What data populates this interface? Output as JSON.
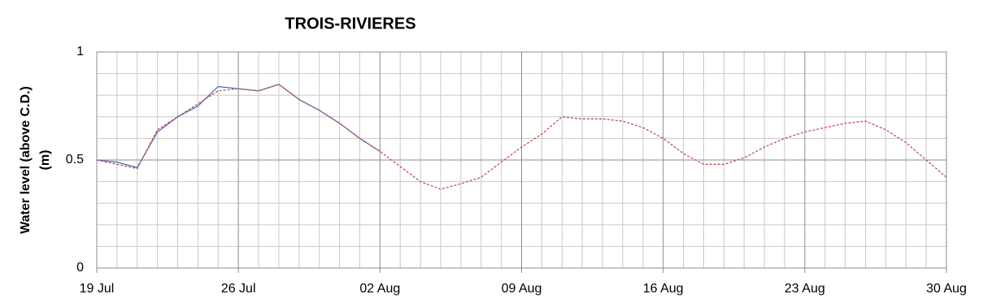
{
  "chart_data": {
    "type": "line",
    "title": "TROIS-RIVIERES",
    "ylabel": [
      "Water level (above C.D.)",
      "(m)"
    ],
    "x": [
      0,
      1,
      2,
      3,
      4,
      5,
      6,
      7,
      8,
      9,
      10,
      11,
      12,
      13,
      14,
      15,
      16,
      17,
      18,
      19,
      20,
      21,
      22,
      23,
      24,
      25,
      26,
      27,
      28,
      29,
      30,
      31,
      32,
      33,
      34,
      35,
      36,
      37,
      38,
      39,
      40,
      41,
      42
    ],
    "xlim": [
      0,
      42
    ],
    "xticks": [
      {
        "value": 0,
        "label": "19 Jul"
      },
      {
        "value": 7,
        "label": "26 Jul"
      },
      {
        "value": 14,
        "label": "02 Aug"
      },
      {
        "value": 21,
        "label": "09 Aug"
      },
      {
        "value": 28,
        "label": "16 Aug"
      },
      {
        "value": 35,
        "label": "23 Aug"
      },
      {
        "value": 42,
        "label": "30 Aug"
      }
    ],
    "ylim": [
      0,
      1
    ],
    "yticks": [
      0,
      0.5,
      1
    ],
    "grid": true,
    "series": [
      {
        "color": "#4f6fbf",
        "dash": false,
        "values": [
          0.5,
          0.49,
          0.465,
          0.63,
          0.7,
          0.75,
          0.84,
          0.83,
          0.82,
          0.85,
          0.78,
          0.73,
          0.67,
          0.6,
          0.54,
          null,
          null,
          null,
          null,
          null,
          null,
          null,
          null,
          null,
          null,
          null,
          null,
          null,
          null,
          null,
          null,
          null,
          null,
          null,
          null,
          null,
          null,
          null,
          null,
          null,
          null,
          null,
          null
        ]
      },
      {
        "color": "#c0504d",
        "dash": true,
        "values": [
          0.5,
          0.48,
          0.46,
          0.64,
          0.7,
          0.76,
          0.82,
          0.83,
          0.82,
          0.85,
          0.78,
          0.73,
          0.67,
          0.6,
          0.54,
          0.47,
          0.4,
          0.365,
          0.39,
          0.42,
          0.49,
          0.56,
          0.62,
          0.7,
          0.69,
          0.69,
          0.68,
          0.65,
          0.6,
          0.53,
          0.48,
          0.48,
          0.51,
          0.56,
          0.6,
          0.63,
          0.65,
          0.67,
          0.68,
          0.64,
          0.58,
          0.5,
          0.42
        ]
      }
    ]
  }
}
